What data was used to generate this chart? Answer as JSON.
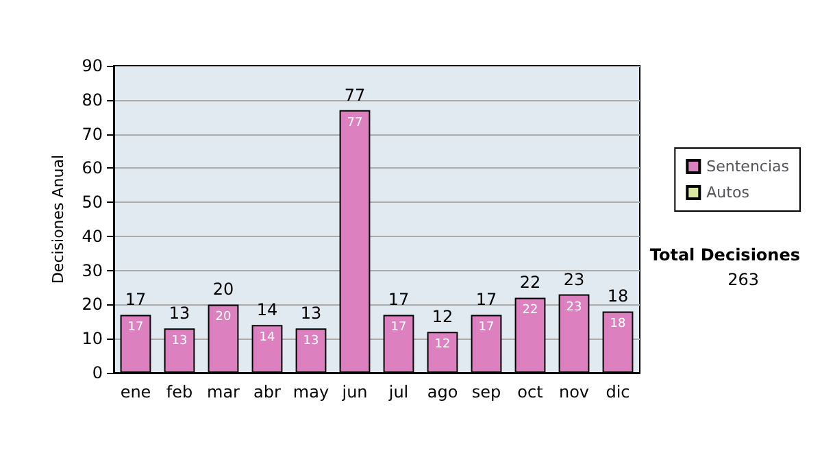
{
  "chart_data": {
    "type": "bar",
    "stacked": true,
    "ylabel": "Decisiones Anual",
    "categories": [
      "ene",
      "feb",
      "mar",
      "abr",
      "may",
      "jun",
      "jul",
      "ago",
      "sep",
      "oct",
      "nov",
      "dic"
    ],
    "series": [
      {
        "name": "Sentencias",
        "color": "#dd80c0",
        "values": [
          17,
          13,
          20,
          14,
          13,
          77,
          17,
          12,
          17,
          22,
          23,
          18
        ],
        "value_labels": [
          "17",
          "13",
          "20",
          "14",
          "13",
          "77",
          "17",
          "12",
          "17",
          "22",
          "23",
          "18"
        ]
      },
      {
        "name": "Autos",
        "color": "#d8e8a0",
        "values": [
          0,
          0,
          0,
          0,
          0,
          0,
          0,
          0,
          0,
          0,
          0,
          0
        ]
      }
    ],
    "totals": [
      "17",
      "13",
      "20",
      "14",
      "13",
      "77",
      "17",
      "12",
      "17",
      "22",
      "23",
      "18"
    ],
    "ylim": [
      0,
      90
    ],
    "yticks": [
      0,
      10,
      20,
      30,
      40,
      50,
      60,
      70,
      80,
      90
    ],
    "grid": "y",
    "legend": "right",
    "annotations": [
      "Total Decisiones",
      "263"
    ]
  }
}
